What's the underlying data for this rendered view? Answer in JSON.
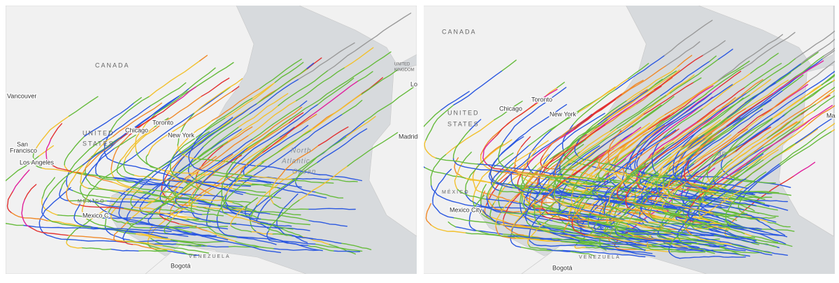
{
  "maps": [
    {
      "labels": {
        "canada": "CANADA",
        "vancouver": "Vancouver",
        "united": "UNITED",
        "states": "STATES",
        "san": "San",
        "francisco": "Francisco",
        "los_angeles": "Los Angeles",
        "chicago": "Chicago",
        "toronto": "Toronto",
        "new_york": "New York",
        "north": "North",
        "atlantic": "Atlantic",
        "ocean": "Ocean",
        "mexico": "MÉXICO",
        "mexico_city": "Mexico C",
        "venezuela": "VENEZUELA",
        "bogota": "Bogotá",
        "madrid": "Madrid",
        "london": "Lo",
        "uk1": "UNITED",
        "uk2": "KINGDOM"
      }
    },
    {
      "labels": {
        "canada": "CANADA",
        "united": "UNITED",
        "states": "STATES",
        "chicago": "Chicago",
        "toronto": "Toronto",
        "new_york": "New York",
        "mexico": "MÉXICO",
        "mexico_city": "Mexico City",
        "venezuela": "VENEZUELA",
        "bogota": "Bogotá",
        "ocean": "an",
        "ma": "Ma"
      }
    }
  ]
}
